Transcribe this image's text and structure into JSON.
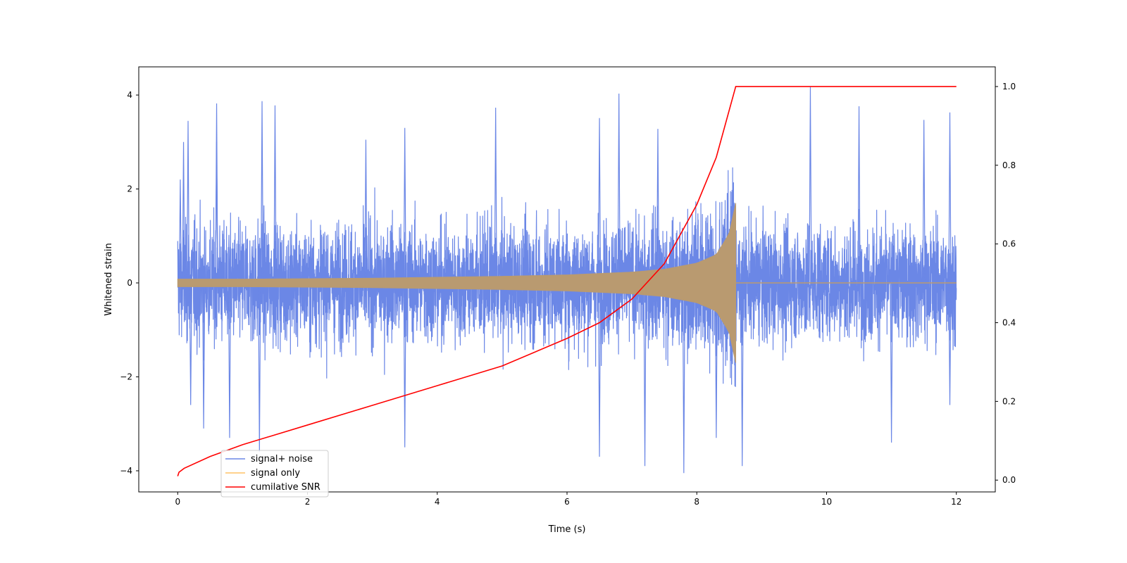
{
  "chart_data": {
    "type": "line",
    "xlabel": "Time (s)",
    "ylabel": "Whitened strain",
    "ylabel_right": "",
    "xlim": [
      -0.6,
      12.6
    ],
    "ylim": [
      -4.45,
      4.6
    ],
    "ylim_right": [
      -0.03,
      1.05
    ],
    "xticks": [
      0,
      2,
      4,
      6,
      8,
      10,
      12
    ],
    "yticks": [
      -4,
      -2,
      0,
      2,
      4
    ],
    "yticks_right": [
      0.0,
      0.2,
      0.4,
      0.6,
      0.8,
      1.0
    ],
    "yticks_right_labels": [
      "0.0",
      "0.2",
      "0.4",
      "0.6",
      "0.8",
      "1.0"
    ],
    "grid": false,
    "legend_placement": "lower-left",
    "merger_time": 8.6,
    "duration": 12,
    "series": [
      {
        "name": "signal+ noise",
        "color": "#6b87e6",
        "axis": "left",
        "noise_rms": 0.85,
        "peaks_max": [
          {
            "x": 0.04,
            "y": 2.2
          },
          {
            "x": 0.09,
            "y": 3.0
          },
          {
            "x": 0.16,
            "y": 3.45
          },
          {
            "x": 0.6,
            "y": 3.0
          },
          {
            "x": 0.6,
            "y": 3.0
          },
          {
            "x": 0.6,
            "y": 3.82
          },
          {
            "x": 1.3,
            "y": 3.87
          },
          {
            "x": 1.5,
            "y": 3.78
          },
          {
            "x": 2.9,
            "y": 3.05
          },
          {
            "x": 3.5,
            "y": 3.3
          },
          {
            "x": 4.9,
            "y": 3.73
          },
          {
            "x": 6.5,
            "y": 3.51
          },
          {
            "x": 6.8,
            "y": 4.03
          },
          {
            "x": 7.4,
            "y": 3.28
          },
          {
            "x": 9.75,
            "y": 4.17
          },
          {
            "x": 10.5,
            "y": 3.76
          },
          {
            "x": 11.5,
            "y": 3.47
          },
          {
            "x": 11.9,
            "y": 3.63
          }
        ],
        "peaks_min": [
          {
            "x": 0.2,
            "y": -2.6
          },
          {
            "x": 0.4,
            "y": -3.1
          },
          {
            "x": 0.8,
            "y": -3.3
          },
          {
            "x": 1.26,
            "y": -3.6
          },
          {
            "x": 3.5,
            "y": -3.5
          },
          {
            "x": 6.5,
            "y": -3.7
          },
          {
            "x": 7.2,
            "y": -3.9
          },
          {
            "x": 7.8,
            "y": -4.05
          },
          {
            "x": 8.3,
            "y": -3.3
          },
          {
            "x": 8.7,
            "y": -3.9
          },
          {
            "x": 11.0,
            "y": -3.4
          },
          {
            "x": 11.9,
            "y": -2.6
          }
        ]
      },
      {
        "name": "signal only",
        "color": "#ffc466",
        "axis": "left",
        "envelope": {
          "x": [
            0,
            1,
            2,
            3,
            4,
            5,
            6,
            7,
            7.5,
            8,
            8.3,
            8.5,
            8.6
          ],
          "amplitude": [
            0.08,
            0.08,
            0.09,
            0.1,
            0.12,
            0.14,
            0.17,
            0.23,
            0.29,
            0.42,
            0.6,
            1.05,
            1.7
          ]
        },
        "after_merger": 0.0
      },
      {
        "name": "cumilative SNR",
        "color": "#ff0000",
        "axis": "right",
        "x": [
          0,
          0.02,
          0.1,
          0.5,
          1.0,
          2.0,
          3.0,
          4.0,
          5.0,
          6.0,
          6.5,
          7.0,
          7.5,
          8.0,
          8.3,
          8.5,
          8.6,
          12
        ],
        "y": [
          0.01,
          0.02,
          0.03,
          0.06,
          0.09,
          0.14,
          0.19,
          0.24,
          0.29,
          0.36,
          0.4,
          0.46,
          0.55,
          0.7,
          0.82,
          0.94,
          1.0,
          1.0
        ]
      }
    ]
  }
}
